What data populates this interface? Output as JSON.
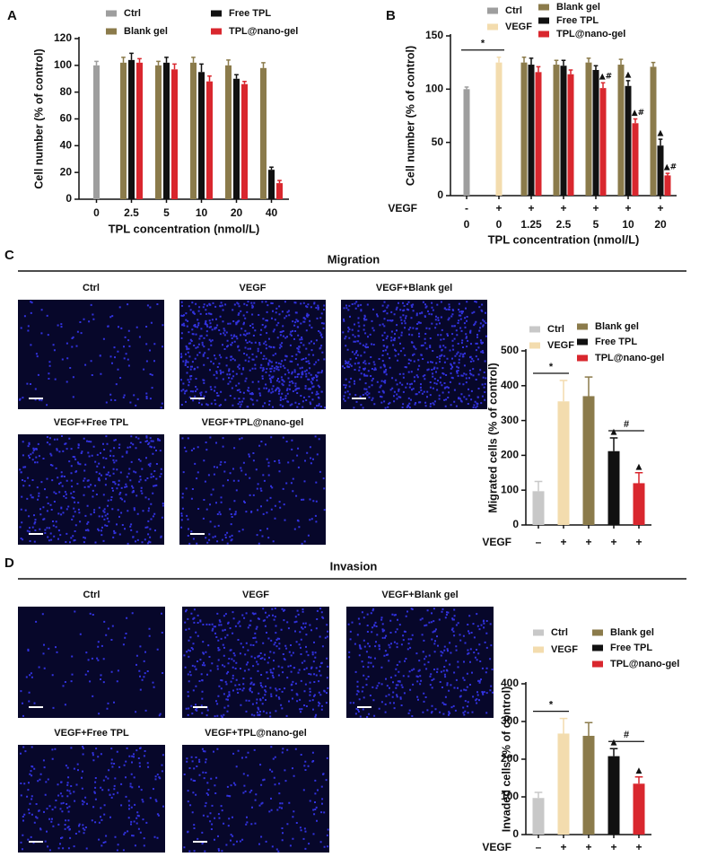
{
  "figure": {
    "panel_labels": [
      "A",
      "B",
      "C",
      "D"
    ],
    "sections": [
      {
        "title": "Migration",
        "images": [
          "Ctrl",
          "VEGF",
          "VEGF+Blank gel",
          "VEGF+Free TPL",
          "VEGF+TPL@nano-gel"
        ]
      },
      {
        "title": "Invasion",
        "images": [
          "Ctrl",
          "VEGF",
          "VEGF+Blank gel",
          "VEGF+Free TPL",
          "VEGF+TPL@nano-gel"
        ]
      }
    ]
  },
  "chart_data": [
    {
      "type": "bar",
      "ylabel": "Cell number (% of control)",
      "xlabel": "TPL concentration (nmol/L)",
      "categories": [
        "0",
        "2.5",
        "5",
        "10",
        "20",
        "40"
      ],
      "series": [
        {
          "name": "Ctrl",
          "color": "#9e9e9e",
          "values": [
            100,
            null,
            null,
            null,
            null,
            null
          ],
          "errors": [
            3,
            null,
            null,
            null,
            null,
            null
          ]
        },
        {
          "name": "Blank gel",
          "color": "#8b7b4b",
          "values": [
            null,
            102,
            100,
            102,
            100,
            98
          ],
          "errors": [
            null,
            4,
            3,
            4,
            4,
            4
          ]
        },
        {
          "name": "Free TPL",
          "color": "#111111",
          "values": [
            null,
            104,
            102,
            95,
            90,
            22
          ],
          "errors": [
            null,
            5,
            4,
            6,
            3,
            2
          ]
        },
        {
          "name": "TPL@nano-gel",
          "color": "#d9272e",
          "values": [
            null,
            102,
            97,
            88,
            86,
            12
          ],
          "errors": [
            null,
            3,
            4,
            4,
            2,
            2
          ]
        }
      ],
      "ylim": [
        0,
        120
      ],
      "yticks": [
        0,
        20,
        40,
        60,
        80,
        100,
        120
      ]
    },
    {
      "type": "bar",
      "ylabel": "Cell number (% of control)",
      "xlabel": "TPL concentration (nmol/L)",
      "categories": [
        "0",
        "0",
        "1.25",
        "2.5",
        "5",
        "10",
        "20"
      ],
      "row_label": "VEGF",
      "row_categories": [
        "-",
        "+",
        "+",
        "+",
        "+",
        "+",
        "+"
      ],
      "series": [
        {
          "name": "Ctrl",
          "color": "#9e9e9e",
          "values": [
            100,
            null,
            null,
            null,
            null,
            null,
            null
          ],
          "errors": [
            2,
            null,
            null,
            null,
            null,
            null,
            null
          ]
        },
        {
          "name": "VEGF",
          "color": "#f3dcae",
          "values": [
            null,
            125,
            null,
            null,
            null,
            null,
            null
          ],
          "errors": [
            null,
            5,
            null,
            null,
            null,
            null,
            null
          ]
        },
        {
          "name": "Blank gel",
          "color": "#8b7b4b",
          "values": [
            null,
            null,
            125,
            123,
            125,
            123,
            121
          ],
          "errors": [
            null,
            null,
            5,
            4,
            4,
            5,
            4
          ]
        },
        {
          "name": "Free TPL",
          "color": "#111111",
          "values": [
            null,
            null,
            123,
            122,
            118,
            103,
            47
          ],
          "errors": [
            null,
            null,
            6,
            5,
            4,
            5,
            6
          ],
          "annotations": [
            null,
            null,
            null,
            null,
            null,
            "▲",
            "▲"
          ]
        },
        {
          "name": "TPL@nano-gel",
          "color": "#d9272e",
          "values": [
            null,
            null,
            116,
            114,
            101,
            68,
            19
          ],
          "errors": [
            null,
            null,
            5,
            4,
            5,
            4,
            2
          ],
          "annotations": [
            null,
            null,
            null,
            null,
            "▲#",
            "▲#",
            "▲#"
          ]
        }
      ],
      "brackets": [
        {
          "label": "*",
          "between": [
            0,
            1
          ]
        }
      ],
      "ylim": [
        0,
        150
      ],
      "yticks": [
        0,
        50,
        100,
        150
      ]
    },
    {
      "type": "bar",
      "ylabel": "Migrated cells (% of control)",
      "row_label": "VEGF",
      "categories": [
        "–",
        "+",
        "+",
        "+",
        "+"
      ],
      "values": [
        97,
        355,
        370,
        212,
        120
      ],
      "errors": [
        28,
        60,
        55,
        38,
        30
      ],
      "colors": [
        "#c8c8c8",
        "#f3dcae",
        "#8b7b4b",
        "#111111",
        "#d9272e"
      ],
      "legend": [
        "Ctrl",
        "VEGF",
        "Blank gel",
        "Free TPL",
        "TPL@nano-gel"
      ],
      "annotations": [
        null,
        null,
        null,
        "▲",
        "▲"
      ],
      "brackets": [
        {
          "label": "*",
          "between": [
            0,
            1
          ]
        },
        {
          "label": "#",
          "between": [
            3,
            4
          ]
        }
      ],
      "ylim": [
        0,
        500
      ],
      "yticks": [
        0,
        100,
        200,
        300,
        400,
        500
      ]
    },
    {
      "type": "bar",
      "ylabel": "Invaded cells (% of control)",
      "row_label": "VEGF",
      "categories": [
        "–",
        "+",
        "+",
        "+",
        "+"
      ],
      "values": [
        97,
        268,
        262,
        208,
        135
      ],
      "errors": [
        15,
        40,
        35,
        20,
        18
      ],
      "colors": [
        "#c8c8c8",
        "#f3dcae",
        "#8b7b4b",
        "#111111",
        "#d9272e"
      ],
      "legend": [
        "Ctrl",
        "VEGF",
        "Blank gel",
        "Free TPL",
        "TPL@nano-gel"
      ],
      "annotations": [
        null,
        null,
        null,
        "▲",
        "▲"
      ],
      "brackets": [
        {
          "label": "*",
          "between": [
            0,
            1
          ]
        },
        {
          "label": "#",
          "between": [
            3,
            4
          ]
        }
      ],
      "ylim": [
        0,
        400
      ],
      "yticks": [
        0,
        100,
        200,
        300,
        400
      ]
    }
  ]
}
